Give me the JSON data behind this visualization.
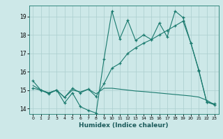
{
  "title": "",
  "xlabel": "Humidex (Indice chaleur)",
  "bg_color": "#cde8e8",
  "line_color": "#1a7a6e",
  "grid_color": "#aacece",
  "ylim": [
    13.7,
    19.6
  ],
  "xlim": [
    -0.5,
    23.5
  ],
  "yticks": [
    14,
    15,
    16,
    17,
    18,
    19
  ],
  "xticks": [
    0,
    1,
    2,
    3,
    4,
    5,
    6,
    7,
    8,
    9,
    10,
    11,
    12,
    13,
    14,
    15,
    16,
    17,
    18,
    19,
    20,
    21,
    22,
    23
  ],
  "line1_x": [
    0,
    1,
    2,
    3,
    4,
    5,
    6,
    7,
    8,
    9,
    10,
    11,
    12,
    13,
    14,
    15,
    16,
    17,
    18,
    19,
    20,
    21,
    22,
    23
  ],
  "line1_y": [
    15.5,
    15.0,
    14.8,
    15.0,
    14.3,
    14.85,
    14.1,
    13.9,
    13.75,
    16.7,
    19.3,
    17.8,
    18.8,
    17.7,
    18.0,
    17.75,
    18.65,
    17.9,
    19.3,
    18.95,
    17.55,
    16.05,
    14.35,
    14.25
  ],
  "line2_x": [
    0,
    1,
    2,
    3,
    4,
    5,
    6,
    7,
    8,
    9,
    10,
    11,
    12,
    13,
    14,
    15,
    16,
    17,
    18,
    19,
    20,
    21,
    22,
    23
  ],
  "line2_y": [
    15.1,
    15.0,
    14.85,
    15.0,
    14.6,
    15.1,
    14.85,
    15.05,
    14.65,
    15.35,
    16.2,
    16.45,
    17.0,
    17.3,
    17.55,
    17.75,
    18.0,
    18.25,
    18.5,
    18.75,
    17.55,
    16.1,
    14.35,
    14.2
  ],
  "line3_x": [
    0,
    1,
    2,
    3,
    4,
    5,
    6,
    7,
    8,
    9,
    10,
    11,
    12,
    13,
    14,
    15,
    16,
    17,
    18,
    19,
    20,
    21,
    22,
    23
  ],
  "line3_y": [
    15.25,
    15.0,
    14.85,
    15.0,
    14.6,
    15.0,
    14.9,
    15.05,
    14.8,
    15.1,
    15.1,
    15.05,
    15.0,
    14.95,
    14.92,
    14.88,
    14.84,
    14.8,
    14.76,
    14.72,
    14.68,
    14.62,
    14.45,
    14.2
  ]
}
